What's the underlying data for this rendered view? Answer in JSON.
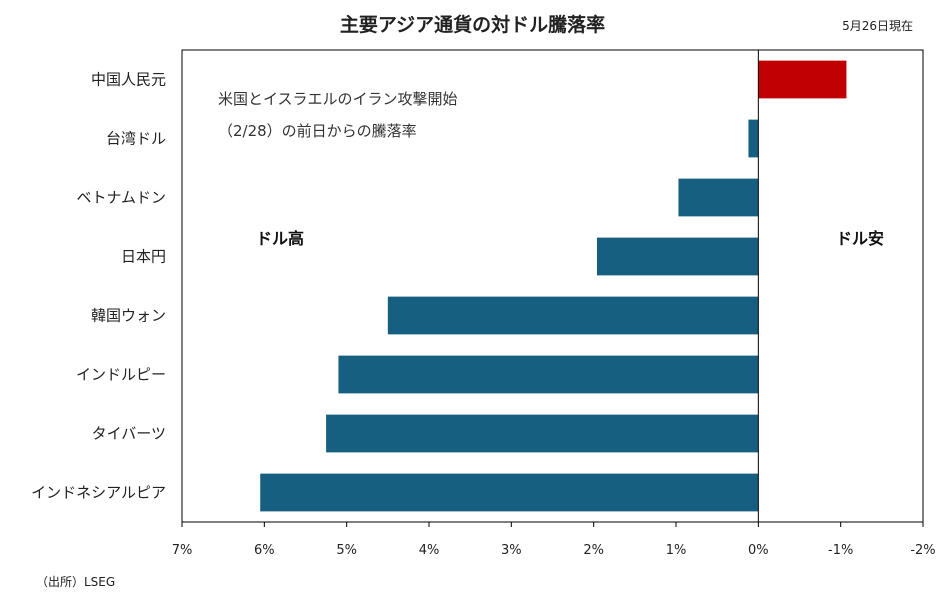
{
  "title": "主要アジア通貨の対ドル騰落率",
  "as_of": "5月26日現在",
  "source": "（出所）LSEG",
  "annotation": {
    "line1": "米国とイスラエルのイラン攻撃開始",
    "line2": "（2/28）の前日からの騰落率"
  },
  "side_labels": {
    "left": "ドル高",
    "right": "ドル安"
  },
  "colors": {
    "negative": "#165f80",
    "positive": "#c00000",
    "axis": "#000000"
  },
  "chart_data": {
    "type": "bar",
    "orientation": "horizontal",
    "title": "主要アジア通貨の対ドル騰落率",
    "x_reversed": true,
    "xlim": [
      7,
      -2
    ],
    "ticks": [
      7,
      6,
      5,
      4,
      3,
      2,
      1,
      0,
      -1,
      -2
    ],
    "tick_labels": [
      "7%",
      "6%",
      "5%",
      "4%",
      "3%",
      "2%",
      "1%",
      "0%",
      "-1%",
      "-2%"
    ],
    "categories": [
      "中国人民元",
      "台湾ドル",
      "ベトナムドン",
      "日本円",
      "韓国ウォン",
      "インドルピー",
      "タイバーツ",
      "インドネシアルピア"
    ],
    "values": [
      -1.07,
      0.12,
      0.97,
      1.96,
      4.5,
      5.1,
      5.25,
      6.05
    ],
    "grid": false,
    "legend": "none"
  }
}
